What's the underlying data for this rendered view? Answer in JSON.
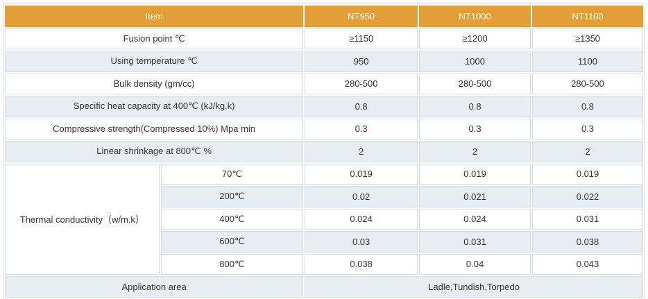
{
  "header": [
    "Item",
    "NT950",
    "NT1000",
    "NT1100"
  ],
  "rows": [
    {
      "label": "Fusion point ℃",
      "values": [
        "≥1150",
        "≥1200",
        "≥1350"
      ]
    },
    {
      "label": "Using temperature ℃",
      "values": [
        "950",
        "1000",
        "1100"
      ]
    },
    {
      "label": "Bulk density (gm/cc)",
      "values": [
        "280-500",
        "280-500",
        "280-500"
      ]
    },
    {
      "label": "Specific heat capacity at 400℃ (kJ/kg.k)",
      "values": [
        "0.8",
        "0.8",
        "0.8"
      ]
    },
    {
      "label": "Compressive strength(Compressed 10%) Mpa min",
      "values": [
        "0.3",
        "0.3",
        "0.3"
      ]
    },
    {
      "label": "Linear shrinkage at 800℃ %",
      "values": [
        "2",
        "2",
        "2"
      ]
    }
  ],
  "thermal": {
    "label": "Thermal conductivity（w/m.k）",
    "rows": [
      {
        "temp": "70℃",
        "values": [
          "0.019",
          "0.019",
          "0.019"
        ]
      },
      {
        "temp": "200℃",
        "values": [
          "0.02",
          "0.021",
          "0.022"
        ]
      },
      {
        "temp": "400℃",
        "values": [
          "0.024",
          "0.024",
          "0.031"
        ]
      },
      {
        "temp": "600℃",
        "values": [
          "0.03",
          "0.031",
          "0.038"
        ]
      },
      {
        "temp": "800℃",
        "values": [
          "0.038",
          "0.04",
          "0.043"
        ]
      }
    ]
  },
  "application": {
    "label": "Application area",
    "value": "Ladle,Tundish,Torpedo"
  }
}
